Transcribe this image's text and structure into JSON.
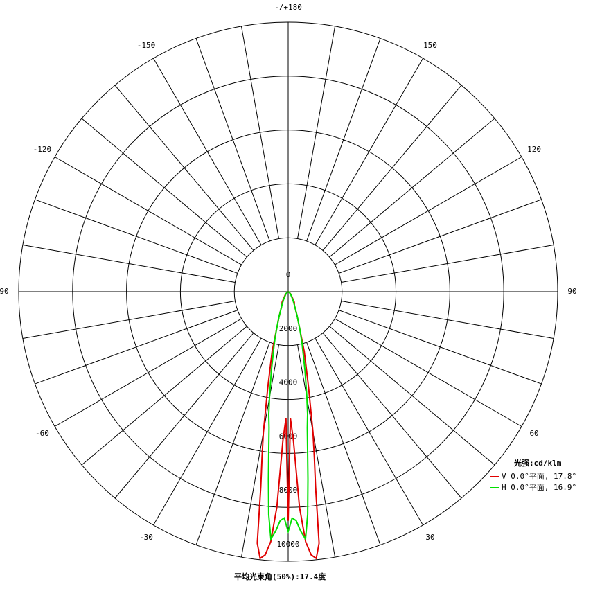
{
  "chart_data": {
    "type": "polar",
    "theta_ticks": [
      {
        "value": 180,
        "label": "-/+180"
      },
      150,
      120,
      {
        "value": 90,
        "label": "90"
      },
      60,
      30,
      -30,
      -60,
      {
        "value": -90,
        "label": "90"
      },
      -120,
      -150
    ],
    "theta_grid": [
      -170,
      -160,
      -150,
      -140,
      -130,
      -120,
      -110,
      -100,
      -90,
      -80,
      -70,
      -60,
      -50,
      -40,
      -30,
      -20,
      -10,
      0,
      10,
      20,
      30,
      40,
      50,
      60,
      70,
      80,
      90,
      100,
      110,
      120,
      130,
      140,
      150,
      160,
      170,
      180
    ],
    "rlim": [
      0,
      10000
    ],
    "rticks": [
      0,
      2000,
      4000,
      6000,
      8000,
      10000
    ],
    "angles": [
      -90,
      -60,
      -45,
      -30,
      -25,
      -20,
      -17,
      -15,
      -12,
      -10,
      -9,
      -8,
      -7,
      -6,
      -5,
      -4,
      -3,
      -2,
      -1,
      0,
      1,
      2,
      3,
      4,
      5,
      6,
      7,
      8,
      9,
      10,
      12,
      15,
      17,
      20,
      25,
      30,
      45,
      60,
      90
    ],
    "legend_title": "光强:cd/klm",
    "series": [
      {
        "name": "V 0.0°平面, 17.8°",
        "color": "#e00000",
        "values": [
          0,
          50,
          150,
          450,
          550,
          1000,
          1500,
          2300,
          3650,
          5300,
          6200,
          7300,
          9400,
          9950,
          9800,
          9300,
          8000,
          5500,
          4700,
          8500,
          4700,
          5500,
          8000,
          9300,
          9800,
          9950,
          9400,
          7300,
          6200,
          5300,
          3650,
          2300,
          1500,
          1000,
          550,
          450,
          150,
          50,
          0
        ]
      },
      {
        "name": "H 0.0°平面, 16.9°",
        "color": "#00e000",
        "values": [
          0,
          40,
          120,
          350,
          550,
          1000,
          1500,
          2000,
          3000,
          4000,
          4600,
          5100,
          5900,
          7000,
          8300,
          9200,
          8900,
          8500,
          8400,
          8900,
          8400,
          8500,
          8900,
          9200,
          8300,
          7000,
          5900,
          5100,
          4600,
          4000,
          3000,
          2000,
          1500,
          1000,
          550,
          350,
          120,
          40,
          0
        ]
      }
    ],
    "footer": "平均光束角(50%):17.4度"
  }
}
